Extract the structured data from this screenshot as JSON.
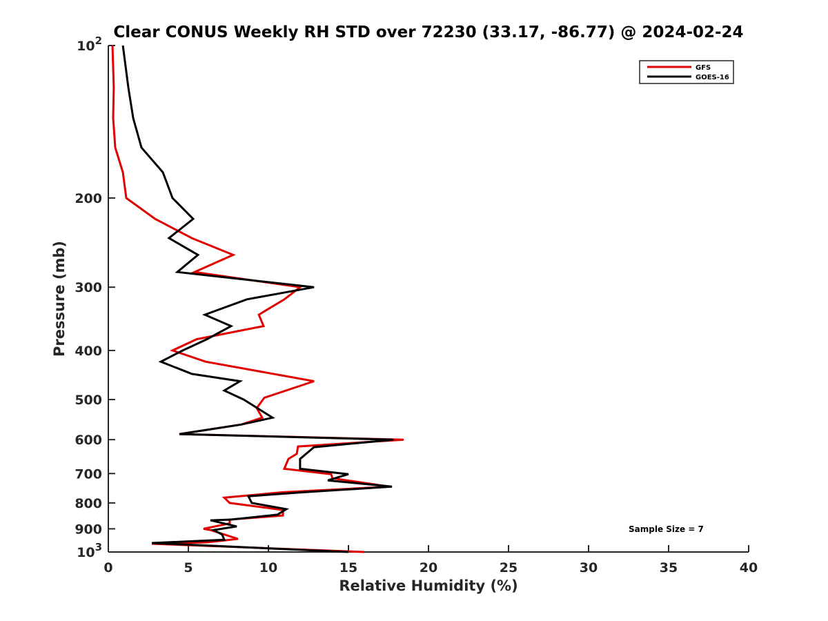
{
  "chart_data": {
    "type": "line",
    "title": "Clear CONUS Weekly RH STD over 72230 (33.17, -86.77) @ 2024-02-24",
    "xlabel": "Relative Humidity (%)",
    "ylabel": "Pressure (mb)",
    "xlim": [
      0,
      40
    ],
    "ylim": [
      100,
      1000
    ],
    "yscale": "log",
    "y_reversed": true,
    "grid": false,
    "xticks": [
      0,
      5,
      10,
      15,
      20,
      25,
      30,
      35,
      40
    ],
    "xtick_labels": [
      "0",
      "5",
      "10",
      "15",
      "20",
      "25",
      "30",
      "35",
      "40"
    ],
    "yticks": [
      100,
      200,
      300,
      400,
      500,
      600,
      700,
      800,
      900,
      1000
    ],
    "ytick_labels": [
      "10^2",
      "200",
      "300",
      "400",
      "500",
      "600",
      "700",
      "800",
      "900",
      "10^3"
    ],
    "legend": {
      "placement": "top-right",
      "entries": [
        {
          "name": "GFS",
          "color": "#e00000"
        },
        {
          "name": "GOES-16",
          "color": "#000000"
        }
      ]
    },
    "annotation": "Sample Size = 7",
    "series": [
      {
        "name": "GFS",
        "color": "#e00000",
        "points": [
          {
            "p": 100,
            "rh": 0.26
          },
          {
            "p": 121,
            "rh": 0.34
          },
          {
            "p": 139,
            "rh": 0.3
          },
          {
            "p": 159,
            "rh": 0.43
          },
          {
            "p": 178,
            "rh": 0.91
          },
          {
            "p": 200,
            "rh": 1.12
          },
          {
            "p": 220,
            "rh": 2.93
          },
          {
            "p": 240,
            "rh": 5.22
          },
          {
            "p": 259,
            "rh": 7.8
          },
          {
            "p": 280,
            "rh": 5.39
          },
          {
            "p": 300,
            "rh": 11.98
          },
          {
            "p": 317,
            "rh": 11.0
          },
          {
            "p": 340,
            "rh": 9.4
          },
          {
            "p": 358,
            "rh": 9.7
          },
          {
            "p": 380,
            "rh": 5.52
          },
          {
            "p": 400,
            "rh": 4.01
          },
          {
            "p": 421,
            "rh": 6.08
          },
          {
            "p": 460,
            "rh": 12.85
          },
          {
            "p": 496,
            "rh": 9.74
          },
          {
            "p": 520,
            "rh": 9.27
          },
          {
            "p": 543,
            "rh": 9.61
          },
          {
            "p": 560,
            "rh": 8.32
          },
          {
            "p": 585,
            "rh": 4.44
          },
          {
            "p": 600,
            "rh": 18.45
          },
          {
            "p": 619,
            "rh": 11.85
          },
          {
            "p": 640,
            "rh": 11.77
          },
          {
            "p": 655,
            "rh": 11.25
          },
          {
            "p": 685,
            "rh": 10.99
          },
          {
            "p": 702,
            "rh": 13.92
          },
          {
            "p": 715,
            "rh": 14.0
          },
          {
            "p": 743,
            "rh": 17.59
          },
          {
            "p": 762,
            "rh": 10.91
          },
          {
            "p": 781,
            "rh": 7.24
          },
          {
            "p": 800,
            "rh": 7.58
          },
          {
            "p": 826,
            "rh": 10.91
          },
          {
            "p": 847,
            "rh": 10.91
          },
          {
            "p": 863,
            "rh": 7.58
          },
          {
            "p": 878,
            "rh": 7.58
          },
          {
            "p": 900,
            "rh": 5.95
          },
          {
            "p": 905,
            "rh": 6.38
          },
          {
            "p": 942,
            "rh": 8.1
          },
          {
            "p": 957,
            "rh": 6.16
          },
          {
            "p": 963,
            "rh": 2.72
          },
          {
            "p": 1000,
            "rh": 15.99
          }
        ]
      },
      {
        "name": "GOES-16",
        "color": "#000000",
        "points": [
          {
            "p": 100,
            "rh": 0.91
          },
          {
            "p": 121,
            "rh": 1.25
          },
          {
            "p": 139,
            "rh": 1.55
          },
          {
            "p": 159,
            "rh": 2.07
          },
          {
            "p": 178,
            "rh": 3.41
          },
          {
            "p": 200,
            "rh": 4.01
          },
          {
            "p": 220,
            "rh": 5.3
          },
          {
            "p": 240,
            "rh": 3.79
          },
          {
            "p": 259,
            "rh": 5.6
          },
          {
            "p": 280,
            "rh": 4.31
          },
          {
            "p": 300,
            "rh": 12.85
          },
          {
            "p": 317,
            "rh": 8.66
          },
          {
            "p": 340,
            "rh": 6.03
          },
          {
            "p": 358,
            "rh": 7.67
          },
          {
            "p": 380,
            "rh": 6.16
          },
          {
            "p": 400,
            "rh": 4.65
          },
          {
            "p": 421,
            "rh": 3.28
          },
          {
            "p": 445,
            "rh": 5.22
          },
          {
            "p": 460,
            "rh": 8.23
          },
          {
            "p": 480,
            "rh": 7.24
          },
          {
            "p": 500,
            "rh": 8.45
          },
          {
            "p": 543,
            "rh": 10.26
          },
          {
            "p": 560,
            "rh": 8.32
          },
          {
            "p": 585,
            "rh": 4.44
          },
          {
            "p": 600,
            "rh": 17.8
          },
          {
            "p": 621,
            "rh": 12.85
          },
          {
            "p": 655,
            "rh": 11.98
          },
          {
            "p": 685,
            "rh": 11.98
          },
          {
            "p": 702,
            "rh": 15.0
          },
          {
            "p": 722,
            "rh": 13.71
          },
          {
            "p": 743,
            "rh": 17.72
          },
          {
            "p": 762,
            "rh": 12.2
          },
          {
            "p": 776,
            "rh": 8.75
          },
          {
            "p": 800,
            "rh": 8.96
          },
          {
            "p": 823,
            "rh": 11.12
          },
          {
            "p": 844,
            "rh": 10.56
          },
          {
            "p": 863,
            "rh": 7.67
          },
          {
            "p": 866,
            "rh": 6.38
          },
          {
            "p": 890,
            "rh": 8.02
          },
          {
            "p": 905,
            "rh": 6.59
          },
          {
            "p": 924,
            "rh": 7.11
          },
          {
            "p": 946,
            "rh": 7.24
          },
          {
            "p": 960,
            "rh": 2.72
          },
          {
            "p": 1000,
            "rh": 15.0
          }
        ]
      }
    ]
  }
}
